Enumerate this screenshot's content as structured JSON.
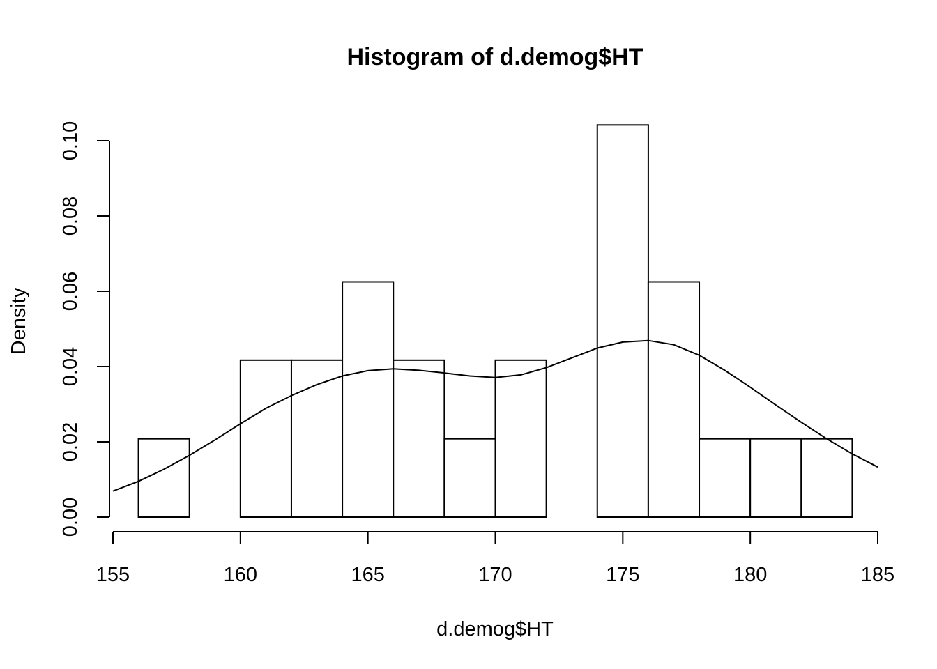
{
  "chart_data": {
    "type": "bar",
    "title": "Histogram of d.demog$HT",
    "xlabel": "d.demog$HT",
    "ylabel": "Density",
    "xlim": [
      155,
      185
    ],
    "ylim": [
      0,
      0.1
    ],
    "xticks": [
      "155",
      "160",
      "165",
      "170",
      "175",
      "180",
      "185"
    ],
    "yticks": [
      "0.00",
      "0.02",
      "0.04",
      "0.06",
      "0.08",
      "0.10"
    ],
    "grid": false,
    "bins": [
      {
        "start": 156,
        "end": 158,
        "density": 0.0208
      },
      {
        "start": 158,
        "end": 160,
        "density": 0.0
      },
      {
        "start": 160,
        "end": 162,
        "density": 0.0417
      },
      {
        "start": 162,
        "end": 164,
        "density": 0.0417
      },
      {
        "start": 164,
        "end": 166,
        "density": 0.0625
      },
      {
        "start": 166,
        "end": 168,
        "density": 0.0417
      },
      {
        "start": 168,
        "end": 170,
        "density": 0.0208
      },
      {
        "start": 170,
        "end": 172,
        "density": 0.0417
      },
      {
        "start": 172,
        "end": 174,
        "density": 0.0
      },
      {
        "start": 174,
        "end": 176,
        "density": 0.1042
      },
      {
        "start": 176,
        "end": 178,
        "density": 0.0625
      },
      {
        "start": 178,
        "end": 180,
        "density": 0.0208
      },
      {
        "start": 180,
        "end": 182,
        "density": 0.0208
      },
      {
        "start": 182,
        "end": 184,
        "density": 0.0208
      }
    ],
    "density_curve": {
      "x": [
        155,
        156,
        157,
        158,
        159,
        160,
        161,
        162,
        163,
        164,
        165,
        166,
        167,
        168,
        169,
        170,
        171,
        172,
        173,
        174,
        175,
        176,
        177,
        178,
        179,
        180,
        181,
        182,
        183,
        184,
        185
      ],
      "y": [
        0.0069,
        0.0095,
        0.0127,
        0.0164,
        0.0205,
        0.0248,
        0.0289,
        0.0323,
        0.0352,
        0.0375,
        0.0389,
        0.0394,
        0.039,
        0.0383,
        0.0375,
        0.0371,
        0.0378,
        0.0397,
        0.0423,
        0.0449,
        0.0465,
        0.0469,
        0.0458,
        0.043,
        0.039,
        0.0345,
        0.0298,
        0.0252,
        0.0208,
        0.0168,
        0.0133
      ]
    }
  }
}
